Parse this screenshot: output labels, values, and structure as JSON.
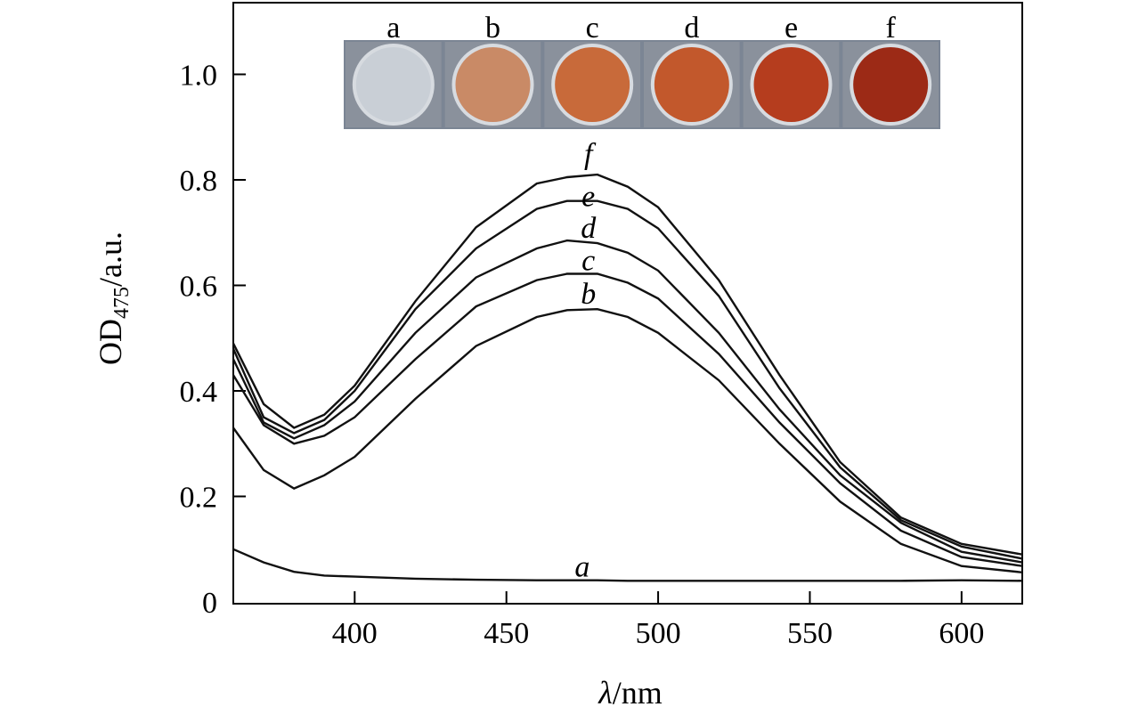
{
  "chart_data": {
    "type": "line",
    "xlabel_symbol": "λ",
    "xlabel_unit": "/nm",
    "ylabel_main": "OD",
    "ylabel_sub": "475",
    "ylabel_unit": "/a.u.",
    "xlim": [
      360,
      620
    ],
    "ylim": [
      0,
      1.12
    ],
    "xticks": [
      400,
      450,
      500,
      550,
      600
    ],
    "xtick_labels": [
      "400",
      "450",
      "500",
      "550",
      "600"
    ],
    "yticks": [
      0,
      0.2,
      0.4,
      0.6,
      0.8,
      1.0
    ],
    "ytick_labels": [
      "0",
      "0.2",
      "0.4",
      "0.6",
      "0.8",
      "1.0"
    ],
    "x": [
      360,
      370,
      380,
      390,
      400,
      420,
      440,
      460,
      470,
      480,
      490,
      500,
      520,
      540,
      560,
      580,
      600,
      620
    ],
    "series": [
      {
        "name": "a",
        "values": [
          0.1,
          0.075,
          0.057,
          0.05,
          0.048,
          0.044,
          0.042,
          0.041,
          0.041,
          0.041,
          0.04,
          0.04,
          0.04,
          0.04,
          0.04,
          0.04,
          0.041,
          0.04
        ]
      },
      {
        "name": "b",
        "values": [
          0.33,
          0.25,
          0.215,
          0.24,
          0.275,
          0.385,
          0.485,
          0.54,
          0.553,
          0.555,
          0.54,
          0.51,
          0.42,
          0.3,
          0.19,
          0.11,
          0.068,
          0.056
        ]
      },
      {
        "name": "c",
        "values": [
          0.43,
          0.335,
          0.3,
          0.315,
          0.35,
          0.46,
          0.56,
          0.61,
          0.622,
          0.622,
          0.605,
          0.575,
          0.47,
          0.34,
          0.225,
          0.135,
          0.085,
          0.068
        ]
      },
      {
        "name": "d",
        "values": [
          0.46,
          0.34,
          0.31,
          0.335,
          0.38,
          0.51,
          0.615,
          0.67,
          0.685,
          0.68,
          0.662,
          0.628,
          0.51,
          0.365,
          0.24,
          0.15,
          0.095,
          0.075
        ]
      },
      {
        "name": "e",
        "values": [
          0.48,
          0.35,
          0.32,
          0.345,
          0.4,
          0.555,
          0.67,
          0.745,
          0.76,
          0.76,
          0.745,
          0.708,
          0.58,
          0.405,
          0.255,
          0.155,
          0.105,
          0.082
        ]
      },
      {
        "name": "f",
        "values": [
          0.49,
          0.375,
          0.33,
          0.355,
          0.41,
          0.57,
          0.71,
          0.793,
          0.805,
          0.81,
          0.787,
          0.748,
          0.61,
          0.43,
          0.265,
          0.16,
          0.11,
          0.09
        ]
      }
    ]
  },
  "inset": {
    "labels": [
      "a",
      "b",
      "c",
      "d",
      "e",
      "f"
    ],
    "colors": [
      "#c9cfd6",
      "#c98a66",
      "#c86a3a",
      "#c2582c",
      "#b53d1e",
      "#9c2a16"
    ]
  }
}
